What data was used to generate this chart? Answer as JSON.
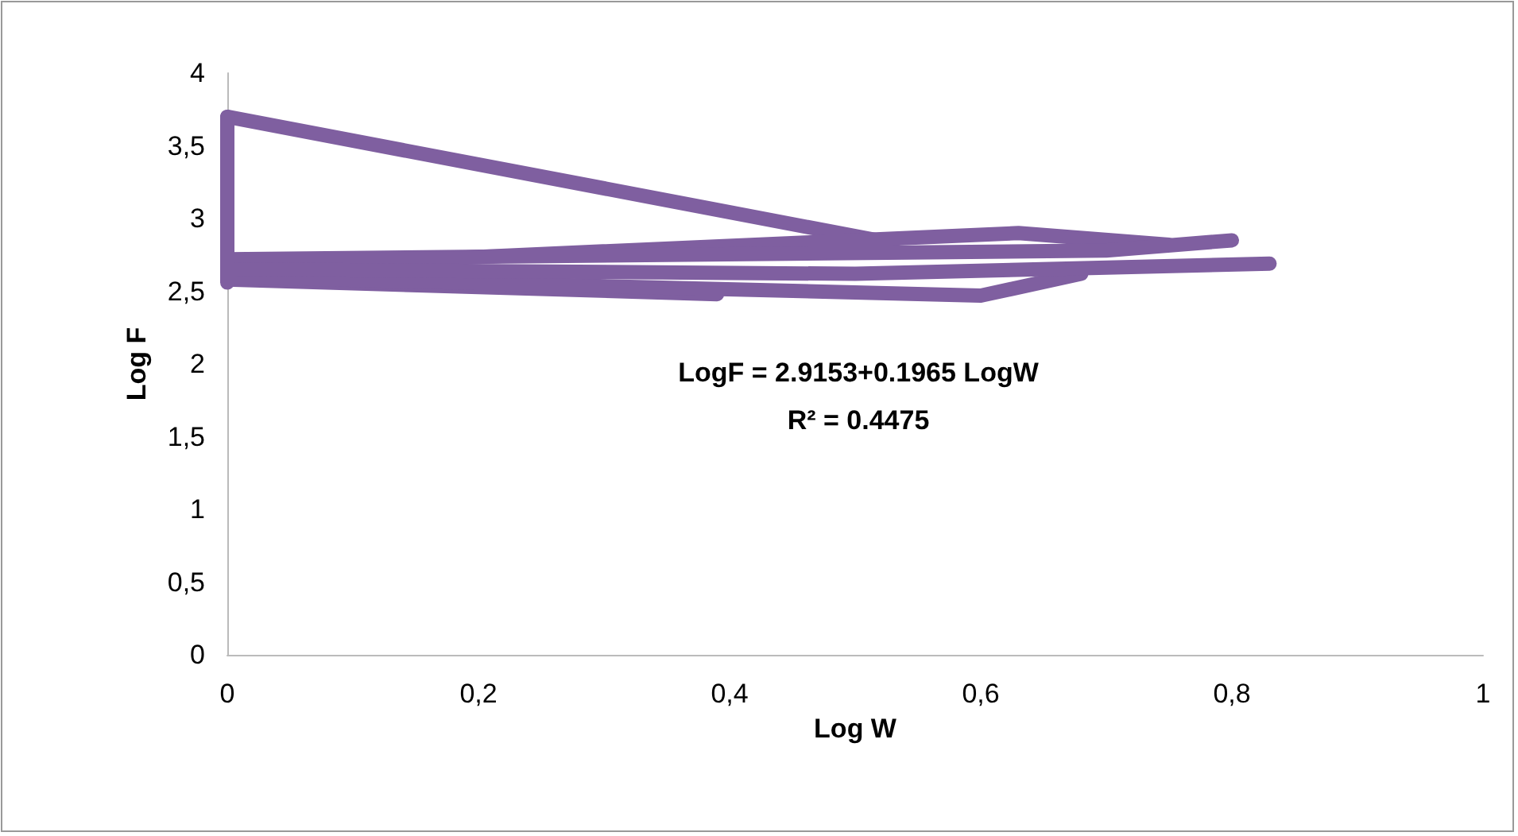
{
  "chart_data": {
    "type": "line",
    "xlabel": "Log W",
    "ylabel": "Log F",
    "xlim": [
      0,
      1
    ],
    "xticks": [
      0,
      {
        "value": 0.2,
        "label": "0,2"
      },
      {
        "value": 0.4,
        "label": "0,4"
      },
      {
        "value": 0.6,
        "label": "0,6"
      },
      {
        "value": 0.8,
        "label": "0,8"
      },
      1
    ],
    "ylim": [
      0,
      4
    ],
    "yticks": [
      0,
      {
        "value": 0.5,
        "label": "0,5"
      },
      1,
      {
        "value": 1.5,
        "label": "1,5"
      },
      2,
      {
        "value": 2.5,
        "label": "2,5"
      },
      3,
      {
        "value": 3.5,
        "label": "3,5"
      },
      4
    ],
    "annotations": [
      "LogF = 2.9153+0.1965 LogW",
      "R² = 0.4475"
    ],
    "series": [
      {
        "color": "#7f5fa0",
        "x": [
          0,
          0.53
        ],
        "values": [
          3.7,
          2.83
        ]
      },
      {
        "color": "#7f5fa0",
        "x": [
          0,
          0.39
        ],
        "values": [
          2.58,
          2.48
        ]
      },
      {
        "color": "#7f5fa0",
        "x": [
          0,
          0.63,
          0.75
        ],
        "values": [
          2.66,
          2.9,
          2.82
        ]
      },
      {
        "color": "#7f5fa0",
        "x": [
          0,
          0.6,
          0.68
        ],
        "values": [
          2.6,
          2.47,
          2.62
        ]
      },
      {
        "color": "#7f5fa0",
        "x": [
          0,
          0.7,
          0.8
        ],
        "values": [
          2.72,
          2.78,
          2.85
        ]
      },
      {
        "color": "#7f5fa0",
        "x": [
          0,
          0.5,
          0.83
        ],
        "values": [
          2.65,
          2.62,
          2.69
        ]
      },
      {
        "color": "#7f5fa0",
        "x": [
          0,
          0
        ],
        "values": [
          2.56,
          3.7
        ]
      }
    ]
  }
}
